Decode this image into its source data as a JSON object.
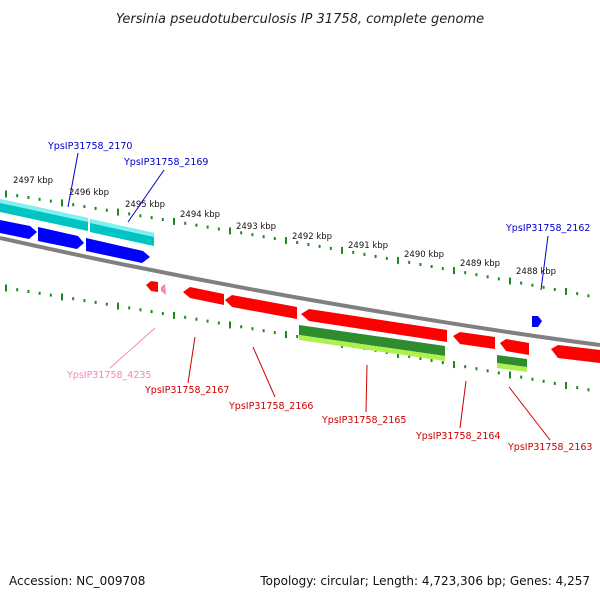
{
  "title": "Yersinia pseudotuberculosis IP 31758, complete genome",
  "accession": "Accession: NC_009708",
  "topology": "Topology: circular; Length: 4,723,306 bp; Genes: 4,257",
  "colors": {
    "forward_cds": "#0000ff",
    "forward_cds_alt": "#00c4c4",
    "reverse_cds": "#ff0000",
    "reverse_rna": "#2e8b2e",
    "reverse_rna_light": "#aef050",
    "pseudogene": "#ff80c0",
    "backbone": "#808080",
    "ticks": "#1a8c1a",
    "forward_label": "#0000cc",
    "reverse_label": "#cc0000",
    "pseudo_label": "#ff80c0"
  },
  "kbp_ticks": [
    "2497 kbp",
    "2496 kbp",
    "2495 kbp",
    "2494 kbp",
    "2493 kbp",
    "2492 kbp",
    "2491 kbp",
    "2490 kbp",
    "2489 kbp",
    "2488 kbp"
  ],
  "gene_labels": {
    "g2170": "YpsIP31758_2170",
    "g2169": "YpsIP31758_2169",
    "g2162": "YpsIP31758_2162",
    "g4235": "YpsIP31758_4235",
    "g2167": "YpsIP31758_2167",
    "g2166": "YpsIP31758_2166",
    "g2165": "YpsIP31758_2165",
    "g2164": "YpsIP31758_2164",
    "g2163": "YpsIP31758_2163"
  }
}
